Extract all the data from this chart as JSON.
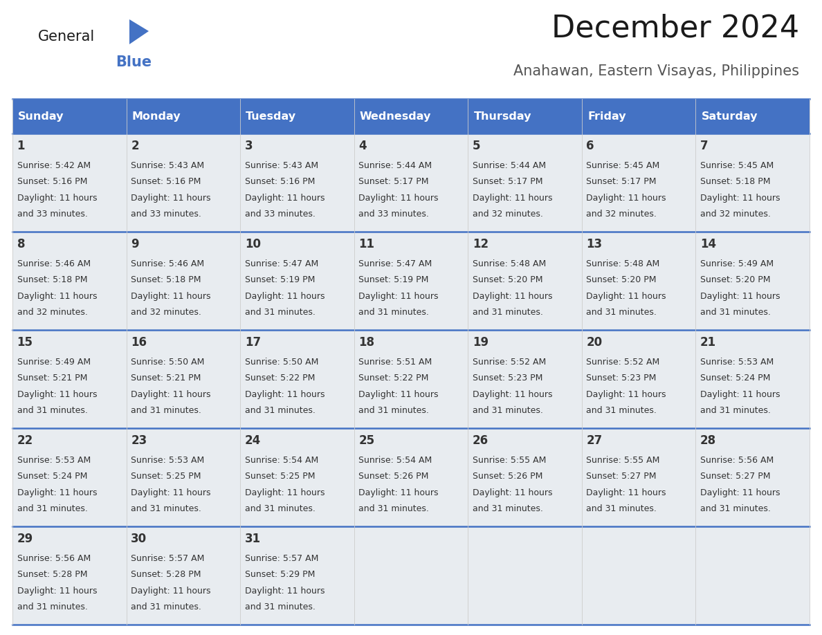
{
  "title": "December 2024",
  "subtitle": "Anahawan, Eastern Visayas, Philippines",
  "header_bg_color": "#4472C4",
  "header_text_color": "#FFFFFF",
  "cell_bg_color": "#E8ECF0",
  "grid_line_color": "#4472C4",
  "col_divider_color": "#CCCCCC",
  "day_number_color": "#333333",
  "cell_text_color": "#333333",
  "day_headers": [
    "Sunday",
    "Monday",
    "Tuesday",
    "Wednesday",
    "Thursday",
    "Friday",
    "Saturday"
  ],
  "calendar_data": [
    [
      {
        "day": 1,
        "sunrise": "5:42 AM",
        "sunset": "5:16 PM",
        "daylight_hours": 11,
        "daylight_minutes": 33
      },
      {
        "day": 2,
        "sunrise": "5:43 AM",
        "sunset": "5:16 PM",
        "daylight_hours": 11,
        "daylight_minutes": 33
      },
      {
        "day": 3,
        "sunrise": "5:43 AM",
        "sunset": "5:16 PM",
        "daylight_hours": 11,
        "daylight_minutes": 33
      },
      {
        "day": 4,
        "sunrise": "5:44 AM",
        "sunset": "5:17 PM",
        "daylight_hours": 11,
        "daylight_minutes": 33
      },
      {
        "day": 5,
        "sunrise": "5:44 AM",
        "sunset": "5:17 PM",
        "daylight_hours": 11,
        "daylight_minutes": 32
      },
      {
        "day": 6,
        "sunrise": "5:45 AM",
        "sunset": "5:17 PM",
        "daylight_hours": 11,
        "daylight_minutes": 32
      },
      {
        "day": 7,
        "sunrise": "5:45 AM",
        "sunset": "5:18 PM",
        "daylight_hours": 11,
        "daylight_minutes": 32
      }
    ],
    [
      {
        "day": 8,
        "sunrise": "5:46 AM",
        "sunset": "5:18 PM",
        "daylight_hours": 11,
        "daylight_minutes": 32
      },
      {
        "day": 9,
        "sunrise": "5:46 AM",
        "sunset": "5:18 PM",
        "daylight_hours": 11,
        "daylight_minutes": 32
      },
      {
        "day": 10,
        "sunrise": "5:47 AM",
        "sunset": "5:19 PM",
        "daylight_hours": 11,
        "daylight_minutes": 31
      },
      {
        "day": 11,
        "sunrise": "5:47 AM",
        "sunset": "5:19 PM",
        "daylight_hours": 11,
        "daylight_minutes": 31
      },
      {
        "day": 12,
        "sunrise": "5:48 AM",
        "sunset": "5:20 PM",
        "daylight_hours": 11,
        "daylight_minutes": 31
      },
      {
        "day": 13,
        "sunrise": "5:48 AM",
        "sunset": "5:20 PM",
        "daylight_hours": 11,
        "daylight_minutes": 31
      },
      {
        "day": 14,
        "sunrise": "5:49 AM",
        "sunset": "5:20 PM",
        "daylight_hours": 11,
        "daylight_minutes": 31
      }
    ],
    [
      {
        "day": 15,
        "sunrise": "5:49 AM",
        "sunset": "5:21 PM",
        "daylight_hours": 11,
        "daylight_minutes": 31
      },
      {
        "day": 16,
        "sunrise": "5:50 AM",
        "sunset": "5:21 PM",
        "daylight_hours": 11,
        "daylight_minutes": 31
      },
      {
        "day": 17,
        "sunrise": "5:50 AM",
        "sunset": "5:22 PM",
        "daylight_hours": 11,
        "daylight_minutes": 31
      },
      {
        "day": 18,
        "sunrise": "5:51 AM",
        "sunset": "5:22 PM",
        "daylight_hours": 11,
        "daylight_minutes": 31
      },
      {
        "day": 19,
        "sunrise": "5:52 AM",
        "sunset": "5:23 PM",
        "daylight_hours": 11,
        "daylight_minutes": 31
      },
      {
        "day": 20,
        "sunrise": "5:52 AM",
        "sunset": "5:23 PM",
        "daylight_hours": 11,
        "daylight_minutes": 31
      },
      {
        "day": 21,
        "sunrise": "5:53 AM",
        "sunset": "5:24 PM",
        "daylight_hours": 11,
        "daylight_minutes": 31
      }
    ],
    [
      {
        "day": 22,
        "sunrise": "5:53 AM",
        "sunset": "5:24 PM",
        "daylight_hours": 11,
        "daylight_minutes": 31
      },
      {
        "day": 23,
        "sunrise": "5:53 AM",
        "sunset": "5:25 PM",
        "daylight_hours": 11,
        "daylight_minutes": 31
      },
      {
        "day": 24,
        "sunrise": "5:54 AM",
        "sunset": "5:25 PM",
        "daylight_hours": 11,
        "daylight_minutes": 31
      },
      {
        "day": 25,
        "sunrise": "5:54 AM",
        "sunset": "5:26 PM",
        "daylight_hours": 11,
        "daylight_minutes": 31
      },
      {
        "day": 26,
        "sunrise": "5:55 AM",
        "sunset": "5:26 PM",
        "daylight_hours": 11,
        "daylight_minutes": 31
      },
      {
        "day": 27,
        "sunrise": "5:55 AM",
        "sunset": "5:27 PM",
        "daylight_hours": 11,
        "daylight_minutes": 31
      },
      {
        "day": 28,
        "sunrise": "5:56 AM",
        "sunset": "5:27 PM",
        "daylight_hours": 11,
        "daylight_minutes": 31
      }
    ],
    [
      {
        "day": 29,
        "sunrise": "5:56 AM",
        "sunset": "5:28 PM",
        "daylight_hours": 11,
        "daylight_minutes": 31
      },
      {
        "day": 30,
        "sunrise": "5:57 AM",
        "sunset": "5:28 PM",
        "daylight_hours": 11,
        "daylight_minutes": 31
      },
      {
        "day": 31,
        "sunrise": "5:57 AM",
        "sunset": "5:29 PM",
        "daylight_hours": 11,
        "daylight_minutes": 31
      },
      null,
      null,
      null,
      null
    ]
  ]
}
